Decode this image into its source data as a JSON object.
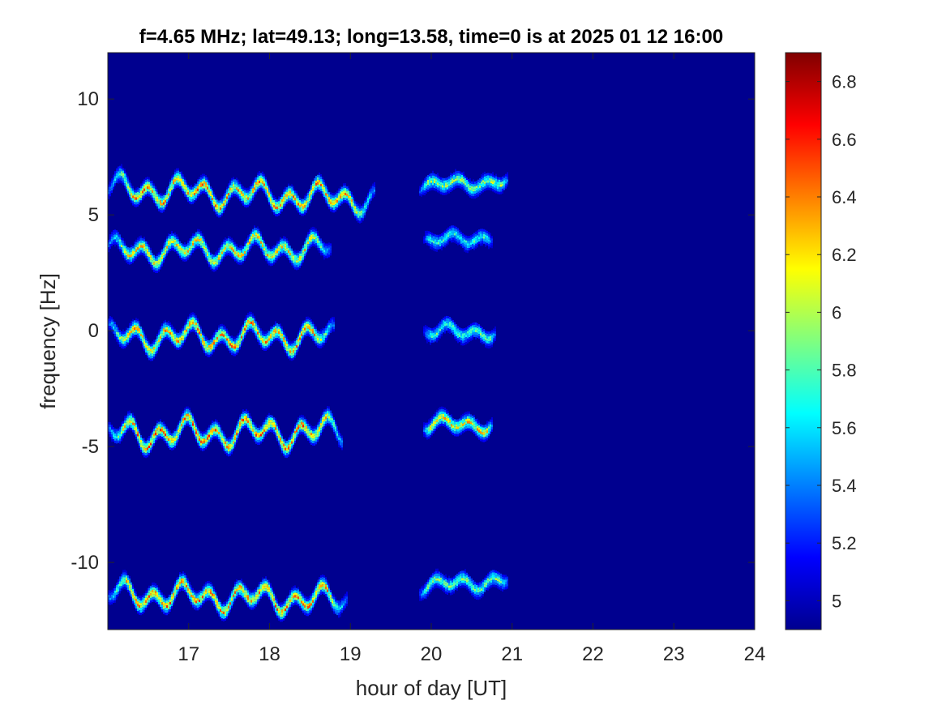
{
  "chart_data": {
    "type": "heatmap",
    "title": "f=4.65 MHz;  lat=49.13; long=13.58, time=0 is at 2025 01 12 16:00",
    "xlabel": "hour of day [UT]",
    "ylabel": "frequency [Hz]",
    "xlim": [
      16.0,
      24.0
    ],
    "ylim": [
      -12.9,
      12.0
    ],
    "x_ticks": [
      17,
      18,
      19,
      20,
      21,
      22,
      23,
      24
    ],
    "x_tick_labels": [
      "17",
      "18",
      "19",
      "20",
      "21",
      "22",
      "23",
      "24"
    ],
    "y_ticks": [
      10,
      5,
      0,
      -5,
      -10
    ],
    "y_tick_labels": [
      "10",
      "5",
      "0",
      "-5",
      "-10"
    ],
    "colormap": "jet",
    "colorbar": {
      "clim": [
        4.9,
        6.9
      ],
      "ticks": [
        6.8,
        6.6,
        6.4,
        6.2,
        6.0,
        5.8,
        5.6,
        5.4,
        5.2,
        5.0
      ],
      "tick_labels": [
        "6.8",
        "6.6",
        "6.4",
        "6.2",
        "6",
        "5.8",
        "5.6",
        "5.4",
        "5.2",
        "5"
      ]
    },
    "background_value": 4.95,
    "grid": false,
    "traces": [
      {
        "segments": [
          {
            "x_start": 16.0,
            "x_end": 19.3,
            "y_base": 6.2,
            "y_end_drift": -0.5,
            "amp": 0.55,
            "peak": 6.75
          },
          {
            "x_start": 19.85,
            "x_end": 20.95,
            "y_base": 6.3,
            "y_end_drift": 0.2,
            "amp": 0.25,
            "peak": 6.3
          }
        ]
      },
      {
        "segments": [
          {
            "x_start": 16.0,
            "x_end": 18.75,
            "y_base": 3.5,
            "y_end_drift": 0.1,
            "amp": 0.5,
            "peak": 6.6
          },
          {
            "x_start": 19.9,
            "x_end": 20.75,
            "y_base": 3.9,
            "y_end_drift": 0.2,
            "amp": 0.25,
            "peak": 6.0
          }
        ]
      },
      {
        "segments": [
          {
            "x_start": 16.0,
            "x_end": 18.8,
            "y_base": -0.2,
            "y_end_drift": 0.0,
            "amp": 0.55,
            "peak": 6.75
          },
          {
            "x_start": 19.9,
            "x_end": 20.8,
            "y_base": 0.0,
            "y_end_drift": 0.0,
            "amp": 0.3,
            "peak": 6.1
          }
        ]
      },
      {
        "segments": [
          {
            "x_start": 16.0,
            "x_end": 18.9,
            "y_base": -4.4,
            "y_end_drift": 0.1,
            "amp": 0.6,
            "peak": 6.85
          },
          {
            "x_start": 19.9,
            "x_end": 20.75,
            "y_base": -4.0,
            "y_end_drift": 0.0,
            "amp": 0.3,
            "peak": 6.6
          }
        ]
      },
      {
        "segments": [
          {
            "x_start": 16.0,
            "x_end": 18.95,
            "y_base": -11.3,
            "y_end_drift": -0.3,
            "amp": 0.55,
            "peak": 6.8
          },
          {
            "x_start": 19.85,
            "x_end": 20.95,
            "y_base": -11.0,
            "y_end_drift": 0.3,
            "amp": 0.3,
            "peak": 6.2
          }
        ]
      }
    ]
  }
}
